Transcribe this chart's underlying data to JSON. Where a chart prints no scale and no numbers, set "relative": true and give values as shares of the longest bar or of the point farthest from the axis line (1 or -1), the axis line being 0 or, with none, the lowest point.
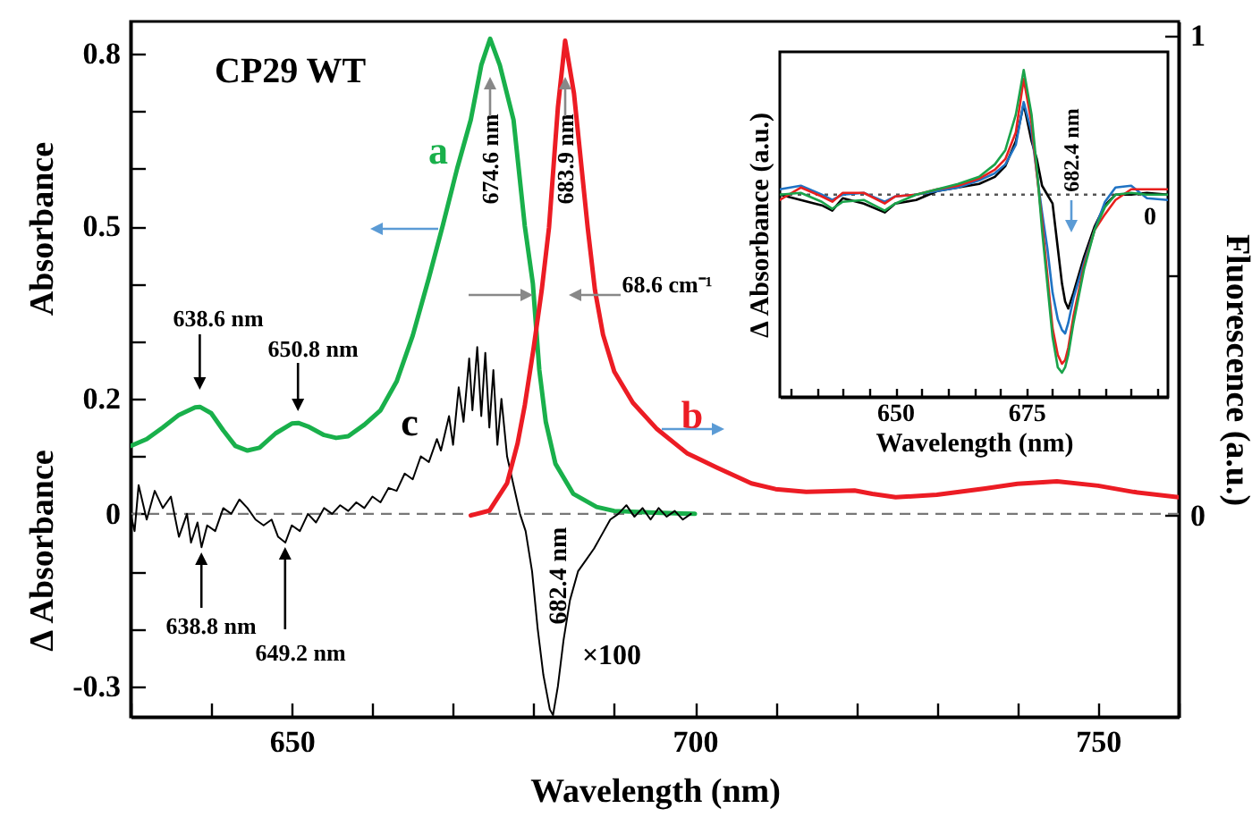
{
  "chart_data": [
    {
      "type": "line",
      "title": "CP29 WT",
      "xlabel": "Wavelength (nm)",
      "ylabel": "Absorbance",
      "y2label": "Fluorescence (a.u.)",
      "xlim": [
        630,
        760
      ],
      "xticks": [
        {
          "value": 630,
          "label": null
        },
        {
          "value": 640,
          "label": null
        },
        650,
        {
          "value": 660,
          "label": null
        },
        {
          "value": 670,
          "label": null
        },
        {
          "value": 680,
          "label": null
        },
        {
          "value": 690,
          "label": null
        },
        700,
        {
          "value": 710,
          "label": null
        },
        {
          "value": 720,
          "label": null
        },
        {
          "value": 730,
          "label": null
        },
        {
          "value": 740,
          "label": null
        },
        750,
        {
          "value": 760,
          "label": null
        }
      ],
      "ylim": [
        -0.353,
        0.856
      ],
      "yticks": [
        {
          "value": -0.3,
          "label": "-0.3"
        },
        {
          "value": -0.2,
          "label": null
        },
        {
          "value": -0.1,
          "label": null
        },
        0,
        {
          "value": 0.1,
          "label": null
        },
        0.2,
        {
          "value": 0.3,
          "label": null
        },
        {
          "value": 0.4,
          "label": null
        },
        0.5,
        {
          "value": 0.6,
          "label": null
        },
        {
          "value": 0.7,
          "label": null
        },
        0.8
      ],
      "y2lim": [
        -0.42,
        1.03
      ],
      "y2ticks": [
        0,
        {
          "value": 0.5,
          "label": null
        },
        1
      ],
      "ref_lines": [
        {
          "axis": "y",
          "value": 0,
          "line_style": "dashed",
          "color": "#777777"
        }
      ],
      "annotations": [
        "674.6 nm",
        "683.9 nm",
        "68.6 cm⁻¹",
        "638.6 nm",
        "650.8 nm",
        "638.8 nm",
        "649.2 nm",
        "682.4 nm",
        "×100",
        "Δ Absorbance"
      ],
      "series": [
        {
          "name": "a",
          "color": "#19b04b",
          "x": [
            630,
            632,
            634,
            636,
            638,
            638.6,
            640,
            641.5,
            643,
            644.5,
            646,
            648,
            650,
            650.8,
            652,
            654,
            655.5,
            657,
            659,
            661,
            663,
            665,
            667,
            668.7,
            670.5,
            672.2,
            673.5,
            674.6,
            675.8,
            677.5,
            678.9,
            679.9,
            680.7,
            681.5,
            682.7,
            684.9,
            687.8,
            690,
            695,
            700
          ],
          "values": [
            0.118,
            0.13,
            0.15,
            0.172,
            0.185,
            0.186,
            0.175,
            0.145,
            0.118,
            0.11,
            0.115,
            0.14,
            0.157,
            0.158,
            0.152,
            0.137,
            0.132,
            0.135,
            0.155,
            0.18,
            0.23,
            0.31,
            0.41,
            0.5,
            0.6,
            0.685,
            0.78,
            0.826,
            0.78,
            0.685,
            0.5,
            0.4,
            0.25,
            0.16,
            0.087,
            0.035,
            0.012,
            0.005,
            0.002,
            0
          ]
        },
        {
          "name": "b",
          "color": "#ec1c24",
          "axis": "y2",
          "x": [
            672.2,
            674.5,
            676.7,
            678,
            678.9,
            680,
            681,
            681.9,
            683,
            683.9,
            685,
            686.7,
            687.6,
            688.6,
            690,
            692.3,
            695.3,
            699,
            702.7,
            707,
            710,
            713.8,
            716,
            719.8,
            722,
            724.9,
            730,
            736,
            740,
            744.9,
            750,
            754.4,
            760
          ],
          "values": [
            0,
            0.01,
            0.067,
            0.15,
            0.23,
            0.35,
            0.47,
            0.6,
            0.85,
            0.99,
            0.88,
            0.6,
            0.47,
            0.377,
            0.3,
            0.235,
            0.18,
            0.13,
            0.1,
            0.067,
            0.055,
            0.049,
            0.05,
            0.052,
            0.045,
            0.038,
            0.043,
            0.056,
            0.066,
            0.071,
            0.062,
            0.049,
            0.038
          ]
        },
        {
          "name": "c",
          "color": "#000000",
          "x": [
            630,
            630.5,
            631,
            632,
            633,
            634,
            635,
            636,
            637,
            637.5,
            638.3,
            638.8,
            639.5,
            640.5,
            641.5,
            642.5,
            643.5,
            644.5,
            645.5,
            646.5,
            647.5,
            648.3,
            649.2,
            650,
            651,
            652,
            653,
            654,
            655,
            656,
            657,
            658,
            659,
            660,
            661,
            662,
            663,
            664,
            665,
            666,
            667,
            668,
            668.5,
            669.5,
            670,
            670.7,
            671.3,
            672,
            672.4,
            673,
            673.5,
            674,
            674.5,
            675,
            675.5,
            676,
            676.7,
            677.5,
            678.3,
            679,
            679.8,
            680.5,
            681.2,
            682,
            682.4,
            683,
            683.7,
            684.5,
            685.5,
            686.5,
            687.5,
            688.5,
            689.5,
            690.5,
            691.5,
            692.5,
            693.5,
            694.5,
            695.5,
            696.5,
            697.5,
            698.5,
            699.5
          ],
          "values": [
            0,
            -0.03,
            0.05,
            -0.01,
            0.04,
            0.01,
            0.03,
            -0.04,
            0,
            -0.05,
            -0.015,
            -0.058,
            -0.02,
            -0.03,
            0.01,
            0,
            0.025,
            0.01,
            -0.01,
            -0.02,
            -0.01,
            -0.04,
            -0.05,
            -0.02,
            -0.03,
            0,
            -0.015,
            0.01,
            0,
            0.015,
            0.005,
            0.02,
            0.01,
            0.03,
            0.02,
            0.045,
            0.04,
            0.07,
            0.06,
            0.1,
            0.09,
            0.13,
            0.11,
            0.17,
            0.12,
            0.22,
            0.16,
            0.27,
            0.18,
            0.29,
            0.17,
            0.28,
            0.15,
            0.25,
            0.12,
            0.2,
            0.1,
            0.05,
            0,
            -0.03,
            -0.1,
            -0.2,
            -0.28,
            -0.34,
            -0.35,
            -0.3,
            -0.22,
            -0.15,
            -0.1,
            -0.08,
            -0.06,
            -0.035,
            -0.01,
            0,
            0.015,
            -0.005,
            0.01,
            -0.01,
            0.01,
            -0.005,
            0.005,
            -0.01,
            0
          ]
        }
      ]
    },
    {
      "type": "line",
      "relative": true,
      "xlabel": "Wavelength (nm)",
      "ylabel": "Δ Absorbance (a.u.)",
      "xlim": [
        628,
        702
      ],
      "xticks": [
        {
          "value": 630,
          "label": null
        },
        {
          "value": 635,
          "label": null
        },
        {
          "value": 640,
          "label": null
        },
        {
          "value": 645,
          "label": null
        },
        650,
        {
          "value": 655,
          "label": null
        },
        {
          "value": 660,
          "label": null
        },
        {
          "value": 665,
          "label": null
        },
        {
          "value": 670,
          "label": null
        },
        675,
        {
          "value": 680,
          "label": null
        },
        {
          "value": 685,
          "label": null
        },
        {
          "value": 690,
          "label": null
        },
        {
          "value": 695,
          "label": null
        },
        {
          "value": 700,
          "label": null
        }
      ],
      "ref_lines": [
        {
          "axis": "y",
          "value": 0,
          "line_style": "dotted",
          "color": "#555555"
        }
      ],
      "annotations": [
        "682.4 nm",
        "0"
      ],
      "x": [
        628,
        632,
        636,
        638,
        640,
        644,
        648,
        650,
        654,
        658,
        662,
        666,
        669,
        671,
        673,
        674.5,
        676,
        677,
        678,
        679,
        680,
        681,
        681.8,
        682.4,
        683,
        684,
        686,
        688,
        690,
        692,
        695,
        698,
        702
      ],
      "series": [
        {
          "color": "#000000",
          "values": [
            0,
            -0.03,
            -0.06,
            -0.09,
            -0.02,
            -0.05,
            -0.1,
            -0.05,
            -0.03,
            0.02,
            0.04,
            0.06,
            0.1,
            0.16,
            0.3,
            0.51,
            0.3,
            0.2,
            0.05,
            0,
            -0.05,
            -0.3,
            -0.5,
            -0.6,
            -0.64,
            -0.55,
            -0.35,
            -0.18,
            -0.06,
            0,
            0,
            0.01,
            0
          ]
        },
        {
          "color": "#1f73c4",
          "values": [
            0.03,
            0.05,
            0,
            -0.03,
            0,
            0.01,
            -0.04,
            -0.01,
            0,
            0.02,
            0.04,
            0.08,
            0.12,
            0.17,
            0.28,
            0.52,
            0.35,
            0.12,
            -0.1,
            -0.3,
            -0.55,
            -0.7,
            -0.76,
            -0.78,
            -0.72,
            -0.58,
            -0.38,
            -0.2,
            -0.04,
            0.04,
            0.05,
            -0.02,
            -0.03
          ]
        },
        {
          "color": "#e8201e",
          "values": [
            -0.03,
            0.04,
            -0.01,
            -0.04,
            0.01,
            0.01,
            -0.05,
            -0.01,
            0,
            0.03,
            0.05,
            0.09,
            0.14,
            0.2,
            0.35,
            0.65,
            0.4,
            0.12,
            -0.15,
            -0.45,
            -0.75,
            -0.9,
            -0.95,
            -0.93,
            -0.86,
            -0.68,
            -0.4,
            -0.2,
            -0.11,
            -0.03,
            0.03,
            0.03,
            0.03
          ]
        },
        {
          "color": "#1aa34a",
          "values": [
            0,
            0.01,
            -0.04,
            -0.08,
            -0.04,
            -0.03,
            -0.09,
            -0.05,
            0,
            0.03,
            0.06,
            0.1,
            0.17,
            0.25,
            0.45,
            0.7,
            0.45,
            0.15,
            -0.2,
            -0.5,
            -0.8,
            -0.97,
            -1,
            -0.97,
            -0.9,
            -0.72,
            -0.42,
            -0.2,
            -0.07,
            0,
            0.01,
            0,
            0
          ]
        }
      ]
    }
  ]
}
